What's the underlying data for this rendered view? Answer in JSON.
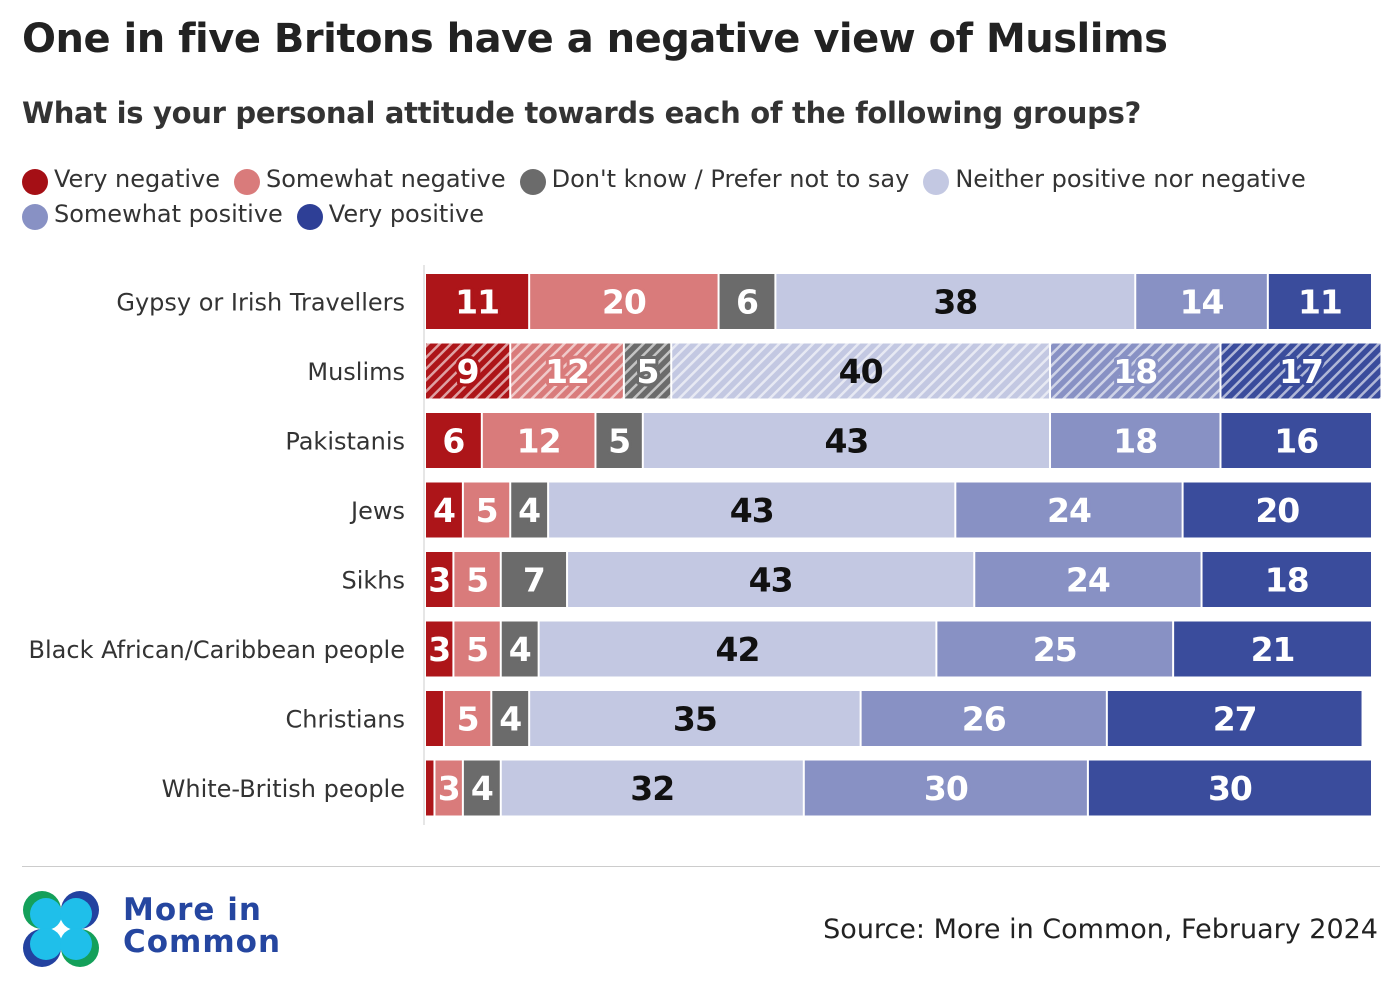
{
  "title": "One in five Britons have a negative view of Muslims",
  "subtitle": "What is your personal attitude towards each of the following groups?",
  "legend": [
    {
      "label": "Very negative",
      "color": "#a50f15"
    },
    {
      "label": "Somewhat negative",
      "color": "#d97b7b"
    },
    {
      "label": "Don't know / Prefer not to say",
      "color": "#6b6b6b"
    },
    {
      "label": "Neither positive nor negative",
      "color": "#c3c8e2"
    },
    {
      "label": "Somewhat positive",
      "color": "#8891c4"
    },
    {
      "label": "Very positive",
      "color": "#2e3f96"
    }
  ],
  "chart_data": {
    "type": "bar",
    "orientation": "horizontal",
    "stacked": true,
    "categories": [
      "Gypsy or Irish Travellers",
      "Muslims",
      "Pakistanis",
      "Jews",
      "Sikhs",
      "Black African/Caribbean people",
      "Christians",
      "White-British people"
    ],
    "highlighted_category": "Muslims",
    "series": [
      {
        "name": "Very negative",
        "color": "#ad1519",
        "values": [
          11,
          9,
          6,
          4,
          3,
          3,
          2,
          1
        ],
        "labeled": [
          true,
          true,
          true,
          true,
          true,
          true,
          false,
          false
        ]
      },
      {
        "name": "Somewhat negative",
        "color": "#d97b7b",
        "values": [
          20,
          12,
          12,
          5,
          5,
          5,
          5,
          3
        ],
        "labeled": [
          true,
          true,
          true,
          true,
          true,
          true,
          true,
          true
        ]
      },
      {
        "name": "Don't know / Prefer not to say",
        "color": "#6b6b6b",
        "values": [
          6,
          5,
          5,
          4,
          7,
          4,
          4,
          4
        ],
        "labeled": [
          true,
          true,
          true,
          true,
          true,
          true,
          true,
          true
        ]
      },
      {
        "name": "Neither positive nor negative",
        "color": "#c3c8e2",
        "values": [
          38,
          40,
          43,
          43,
          43,
          42,
          35,
          32
        ],
        "labeled": [
          true,
          true,
          true,
          true,
          true,
          true,
          true,
          true
        ]
      },
      {
        "name": "Somewhat positive",
        "color": "#8891c4",
        "values": [
          14,
          18,
          18,
          24,
          24,
          25,
          26,
          30
        ],
        "labeled": [
          true,
          true,
          true,
          true,
          true,
          true,
          true,
          true
        ]
      },
      {
        "name": "Very positive",
        "color": "#3a4c9c",
        "values": [
          11,
          17,
          16,
          20,
          18,
          21,
          27,
          30
        ],
        "labeled": [
          true,
          true,
          true,
          true,
          true,
          true,
          true,
          true
        ]
      }
    ],
    "xlim": [
      0,
      100
    ]
  },
  "logo": {
    "line1": "More in",
    "line2": "Common"
  },
  "source": "Source: More in Common, February 2024"
}
